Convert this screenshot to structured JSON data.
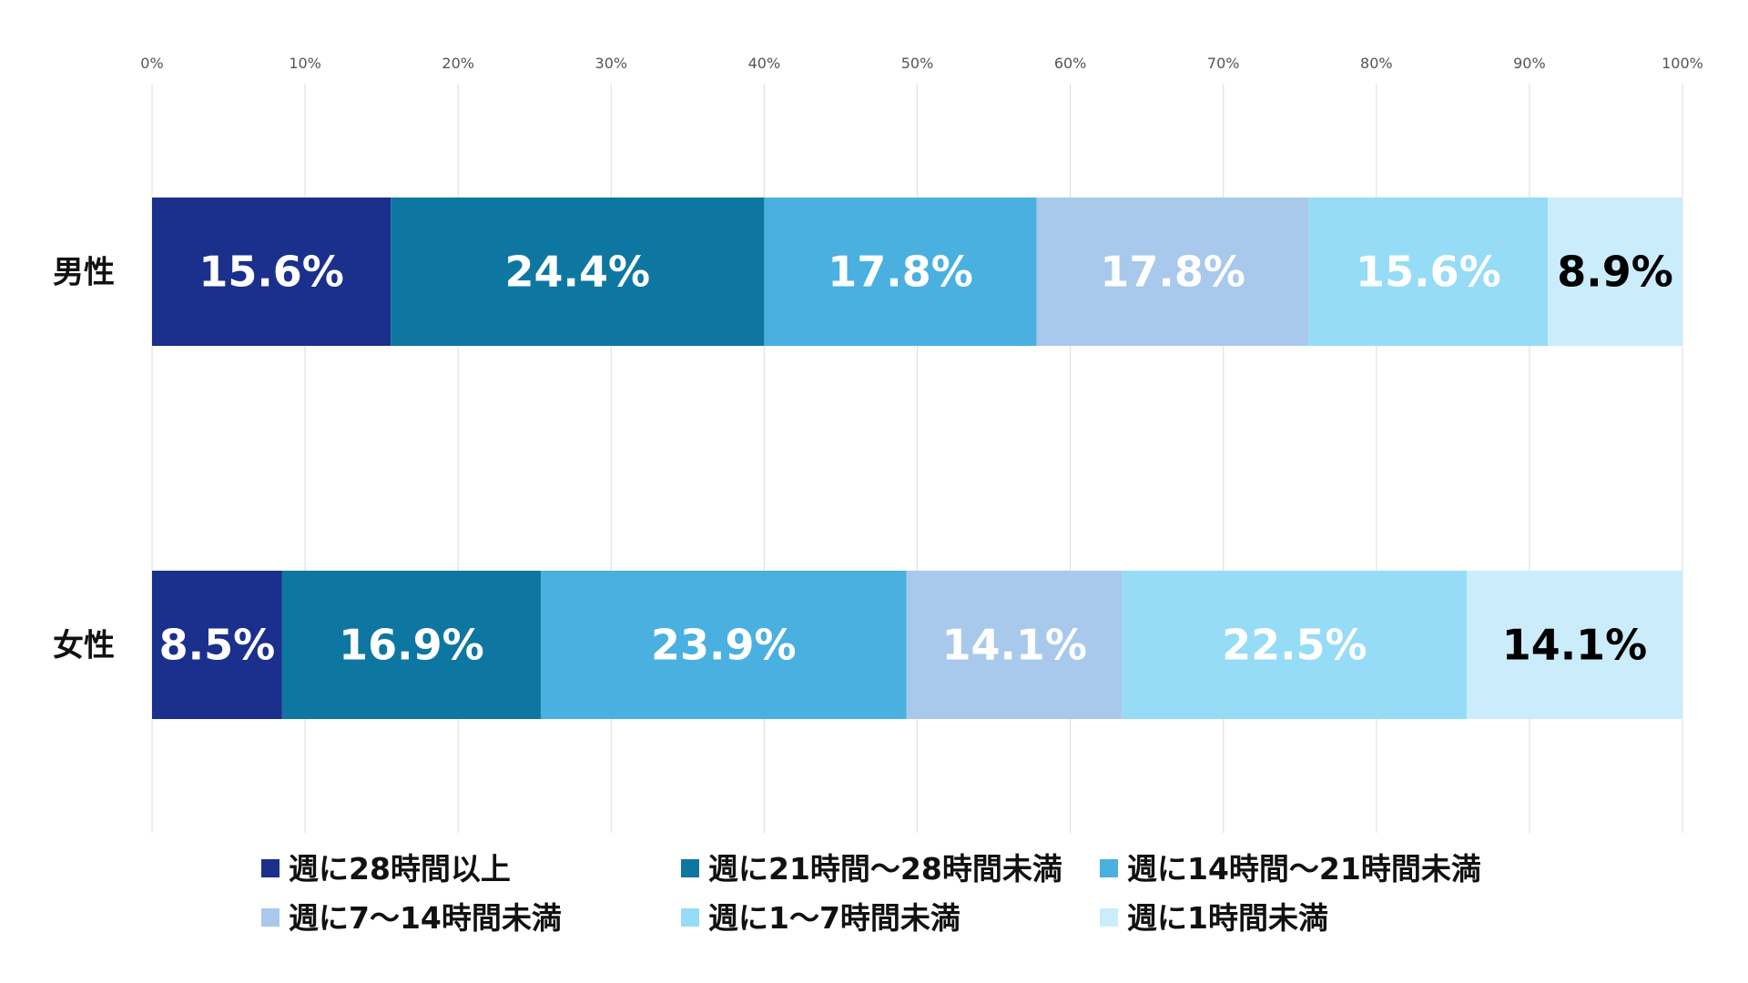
{
  "chart_data": {
    "type": "bar",
    "orientation": "horizontal",
    "stacked": true,
    "title": "",
    "xlabel": "",
    "ylabel": "",
    "xlim": [
      0,
      100
    ],
    "grid": true,
    "legend_position": "bottom",
    "x_ticks": [
      "0%",
      "10%",
      "20%",
      "30%",
      "40%",
      "50%",
      "60%",
      "70%",
      "80%",
      "90%",
      "100%"
    ],
    "categories": [
      "男性",
      "女性"
    ],
    "series": [
      {
        "name": "週に28時間以上",
        "color": "#1b2f8c",
        "label_color": "#ffffff",
        "values": [
          15.6,
          8.5
        ]
      },
      {
        "name": "週に21時間〜28時間未満",
        "color": "#0e77a1",
        "label_color": "#ffffff",
        "values": [
          24.4,
          16.9
        ]
      },
      {
        "name": "週に14時間〜21時間未満",
        "color": "#4ab0e0",
        "label_color": "#ffffff",
        "values": [
          17.8,
          23.9
        ]
      },
      {
        "name": "週に7〜14時間未満",
        "color": "#a8c9ec",
        "label_color": "#ffffff",
        "values": [
          17.8,
          14.1
        ]
      },
      {
        "name": "週に1〜7時間未満",
        "color": "#96dcf6",
        "label_color": "#ffffff",
        "values": [
          15.6,
          22.5
        ]
      },
      {
        "name": "週に1時間未満",
        "color": "#cbedfb",
        "label_color": "#000000",
        "values": [
          8.9,
          14.1
        ]
      }
    ],
    "data_labels": [
      [
        "15.6%",
        "24.4%",
        "17.8%",
        "17.8%",
        "15.6%",
        "8.9%"
      ],
      [
        "8.5%",
        "16.9%",
        "23.9%",
        "14.1%",
        "22.5%",
        "14.1%"
      ]
    ]
  }
}
